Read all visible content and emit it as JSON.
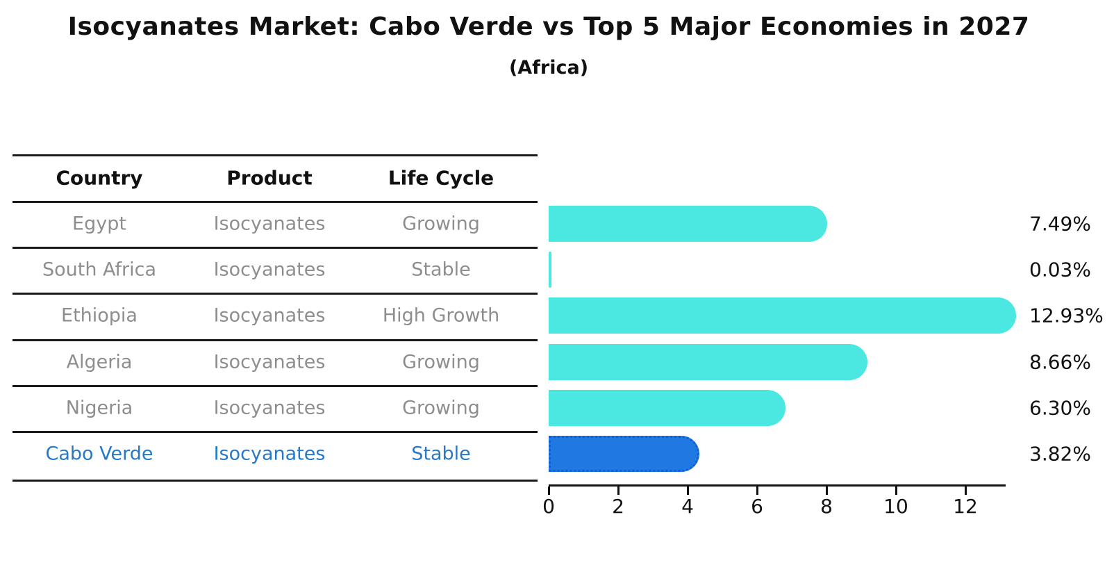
{
  "title": "Isocyanates Market: Cabo Verde vs Top 5 Major Economies in 2027",
  "subtitle": "(Africa)",
  "table": {
    "headers": [
      "Country",
      "Product",
      "Life Cycle"
    ],
    "rows": [
      {
        "country": "Egypt",
        "product": "Isocyanates",
        "life_cycle": "Growing"
      },
      {
        "country": "South Africa",
        "product": "Isocyanates",
        "life_cycle": "Stable"
      },
      {
        "country": "Ethiopia",
        "product": "Isocyanates",
        "life_cycle": "High Growth"
      },
      {
        "country": "Algeria",
        "product": "Isocyanates",
        "life_cycle": "Growing"
      },
      {
        "country": "Nigeria",
        "product": "Isocyanates",
        "life_cycle": "Growing"
      },
      {
        "country": "Cabo Verde",
        "product": "Isocyanates",
        "life_cycle": "Stable"
      }
    ],
    "highlight_row": "Cabo Verde"
  },
  "chart_data": {
    "type": "bar",
    "orientation": "horizontal",
    "categories": [
      "Egypt",
      "South Africa",
      "Ethiopia",
      "Algeria",
      "Nigeria",
      "Cabo Verde"
    ],
    "values": [
      7.49,
      0.03,
      12.93,
      8.66,
      6.3,
      3.82
    ],
    "value_labels": [
      "7.49%",
      "0.03%",
      "12.93%",
      "8.66%",
      "6.30%",
      "3.82%"
    ],
    "x_ticks": [
      0,
      2,
      4,
      6,
      8,
      10,
      12
    ],
    "xlim": [
      0,
      13.4
    ],
    "grid": false,
    "legend_position": "none",
    "bar_color": "#4be8e1",
    "highlight_bar_color": "#2079e2",
    "highlight_border_color": "#0e5fd0",
    "highlight_index": 5,
    "highlight_text_color": "#2878c8",
    "row_text_color": "#8e8e8e"
  }
}
